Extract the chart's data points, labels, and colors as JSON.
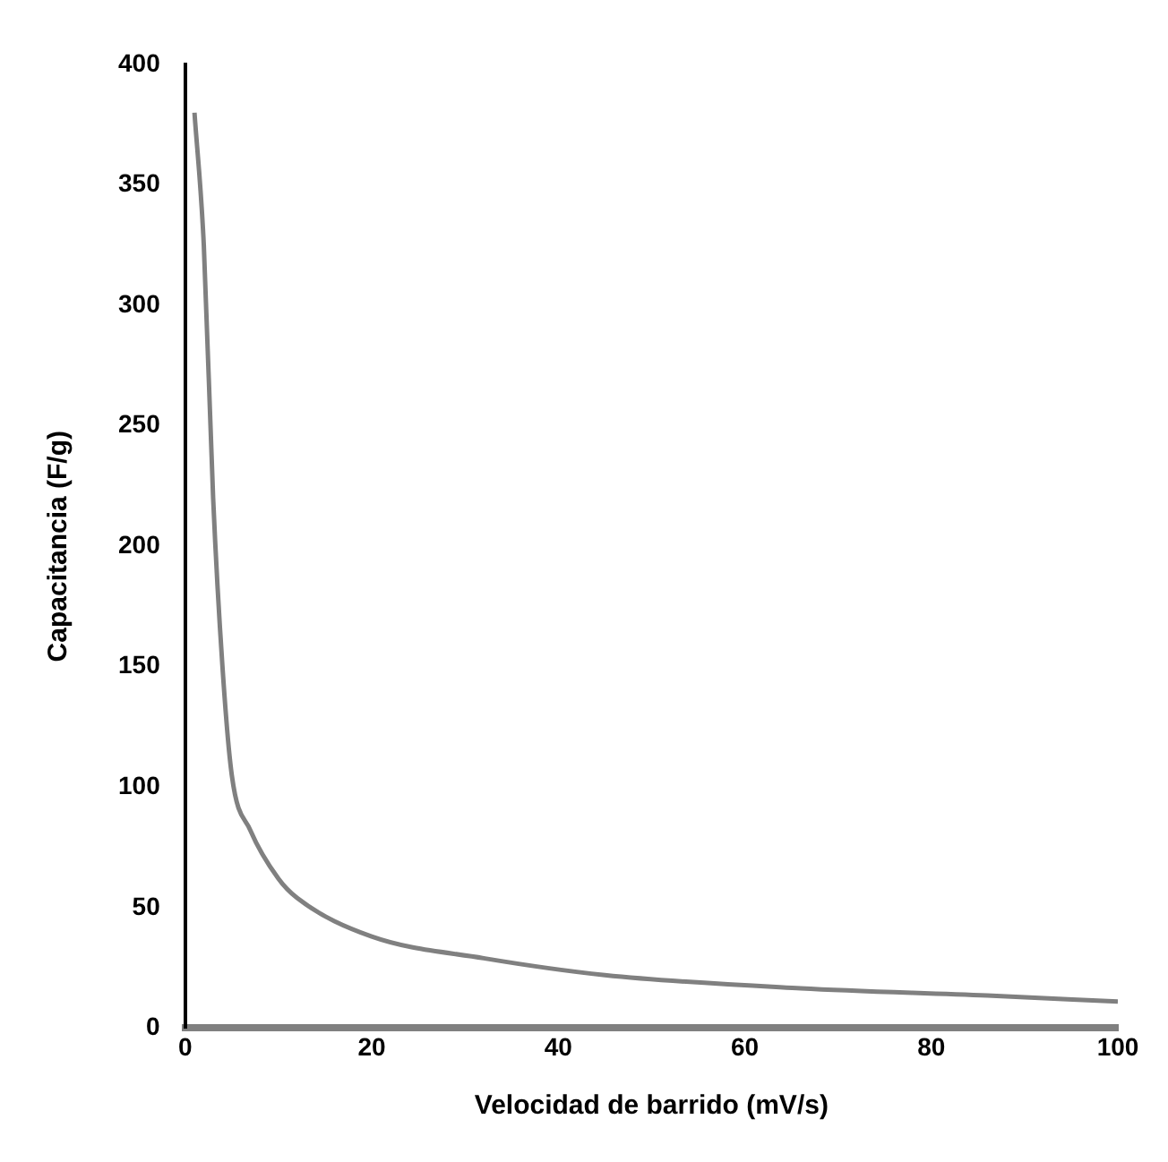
{
  "chart_data": {
    "type": "line",
    "xlabel": "Velocidad de barrido (mV/s)",
    "ylabel": "Capacitancia (F/g)",
    "x": [
      1,
      2,
      3,
      4,
      5,
      7,
      10,
      12,
      20,
      32,
      45,
      66,
      86,
      100
    ],
    "series": [
      {
        "color": "#808080",
        "values": [
          380,
          325,
          220,
          150,
          105,
          82,
          62,
          54,
          38,
          29,
          22,
          16.5,
          13.5,
          11
        ]
      }
    ],
    "xlim": [
      0,
      100
    ],
    "xticks": [
      0,
      20,
      40,
      60,
      80,
      100
    ],
    "ylim": [
      0,
      400
    ],
    "yticks": [
      0,
      50,
      100,
      150,
      200,
      250,
      300,
      350,
      400
    ],
    "grid": false,
    "legend": false,
    "marker": "none",
    "line_style": "solid"
  }
}
